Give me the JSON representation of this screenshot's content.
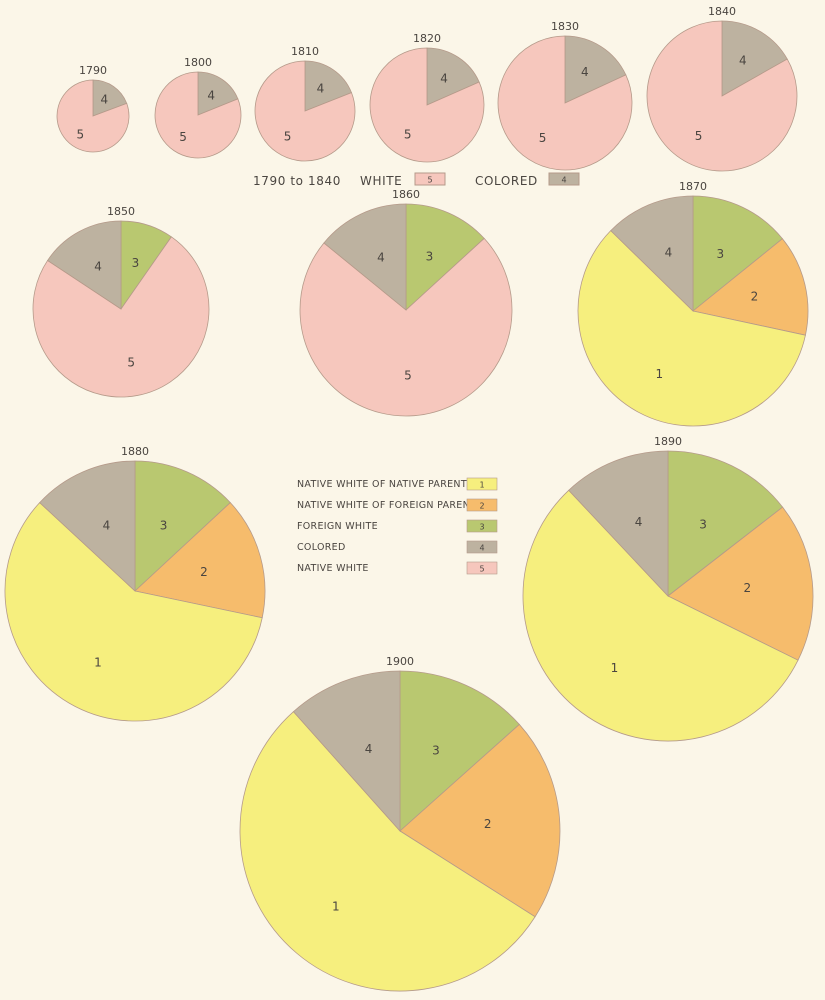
{
  "palette": {
    "1": "#f6ef7e",
    "2": "#f6bc6c",
    "3": "#b9c870",
    "4": "#bdb2a0",
    "5": "#f6c7bd",
    "stroke": "#b59a8a",
    "text": "#4a4540"
  },
  "upper_legend": {
    "period": "1790 to 1840",
    "white_label": "WHITE",
    "white_key": "5",
    "colored_label": "COLORED",
    "colored_key": "4"
  },
  "legend": {
    "items": [
      {
        "label": "NATIVE WHITE OF NATIVE PARENTS",
        "key": "1"
      },
      {
        "label": "NATIVE WHITE OF FOREIGN PARENTS",
        "key": "2"
      },
      {
        "label": "FOREIGN WHITE",
        "key": "3"
      },
      {
        "label": "COLORED",
        "key": "4"
      },
      {
        "label": "NATIVE WHITE",
        "key": "5"
      }
    ]
  },
  "chart_data": {
    "type": "pie",
    "note_units": "slice values are percent of total population; order clockwise from 12 o'clock",
    "pies": [
      {
        "year": "1790",
        "slices": [
          {
            "key": "4",
            "value": 19.3
          },
          {
            "key": "5",
            "value": 80.7
          }
        ]
      },
      {
        "year": "1800",
        "slices": [
          {
            "key": "4",
            "value": 18.9
          },
          {
            "key": "5",
            "value": 81.1
          }
        ]
      },
      {
        "year": "1810",
        "slices": [
          {
            "key": "4",
            "value": 19.0
          },
          {
            "key": "5",
            "value": 81.0
          }
        ]
      },
      {
        "year": "1820",
        "slices": [
          {
            "key": "4",
            "value": 18.4
          },
          {
            "key": "5",
            "value": 81.6
          }
        ]
      },
      {
        "year": "1830",
        "slices": [
          {
            "key": "4",
            "value": 18.1
          },
          {
            "key": "5",
            "value": 81.9
          }
        ]
      },
      {
        "year": "1840",
        "slices": [
          {
            "key": "4",
            "value": 16.8
          },
          {
            "key": "5",
            "value": 83.2
          }
        ]
      },
      {
        "year": "1850",
        "slices": [
          {
            "key": "3",
            "value": 9.7
          },
          {
            "key": "5",
            "value": 74.6
          },
          {
            "key": "4",
            "value": 15.7
          }
        ]
      },
      {
        "year": "1860",
        "slices": [
          {
            "key": "3",
            "value": 13.2
          },
          {
            "key": "5",
            "value": 72.7
          },
          {
            "key": "4",
            "value": 14.1
          }
        ]
      },
      {
        "year": "1870",
        "slices": [
          {
            "key": "3",
            "value": 14.2
          },
          {
            "key": "2",
            "value": 14.2
          },
          {
            "key": "1",
            "value": 59.0
          },
          {
            "key": "4",
            "value": 12.7
          }
        ]
      },
      {
        "year": "1880",
        "slices": [
          {
            "key": "3",
            "value": 13.1
          },
          {
            "key": "2",
            "value": 15.2
          },
          {
            "key": "1",
            "value": 58.6
          },
          {
            "key": "4",
            "value": 13.1
          }
        ]
      },
      {
        "year": "1890",
        "slices": [
          {
            "key": "3",
            "value": 14.5
          },
          {
            "key": "2",
            "value": 17.8
          },
          {
            "key": "1",
            "value": 55.7
          },
          {
            "key": "4",
            "value": 12.0
          }
        ]
      },
      {
        "year": "1900",
        "slices": [
          {
            "key": "3",
            "value": 13.4
          },
          {
            "key": "2",
            "value": 20.6
          },
          {
            "key": "1",
            "value": 54.4
          },
          {
            "key": "4",
            "value": 11.6
          }
        ]
      }
    ]
  }
}
